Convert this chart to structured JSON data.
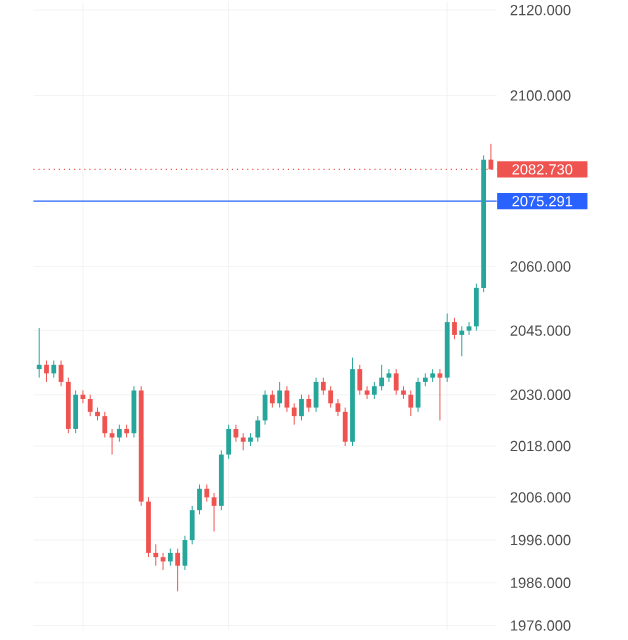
{
  "chart_data": {
    "type": "candlestick",
    "categories": [
      null,
      null,
      null,
      null,
      null,
      null,
      null,
      null,
      null,
      null,
      null,
      null,
      null,
      null,
      null,
      null,
      null,
      null,
      null,
      null,
      null,
      null,
      null,
      null,
      null,
      null,
      null,
      null,
      null,
      null,
      null,
      null,
      null,
      null,
      null,
      null,
      null,
      null,
      null,
      null,
      null,
      null,
      null,
      null,
      null,
      null,
      null,
      null,
      null,
      null,
      null,
      null,
      null,
      null,
      null,
      null,
      null,
      null,
      null,
      null,
      null,
      null,
      null
    ],
    "ohlc": [
      [
        2036,
        2045.6,
        2034,
        2037
      ],
      [
        2037,
        2038,
        2033,
        2035
      ],
      [
        2035,
        2038,
        2034,
        2037
      ],
      [
        2037,
        2038,
        2032,
        2033
      ],
      [
        2033,
        2034,
        2021,
        2022
      ],
      [
        2022,
        2031,
        2021,
        2030
      ],
      [
        2030,
        2031,
        2028,
        2029
      ],
      [
        2029,
        2030,
        2025,
        2026
      ],
      [
        2026,
        2027,
        2024,
        2025
      ],
      [
        2025,
        2026,
        2020,
        2021
      ],
      [
        2021,
        2022,
        2016,
        2020
      ],
      [
        2020,
        2023,
        2019,
        2022
      ],
      [
        2022,
        2023,
        2020,
        2021
      ],
      [
        2021,
        2032,
        2020,
        2031
      ],
      [
        2031,
        2032,
        2004,
        2005
      ],
      [
        2005,
        2006,
        1992,
        1993
      ],
      [
        1993,
        1995,
        1990,
        1992
      ],
      [
        1992,
        1993,
        1989,
        1991
      ],
      [
        1991,
        1994,
        1990,
        1993
      ],
      [
        1993,
        1994,
        1984,
        1990
      ],
      [
        1990,
        1997,
        1989,
        1996
      ],
      [
        1996,
        2004,
        1995,
        2003
      ],
      [
        2003,
        2009,
        2002,
        2008
      ],
      [
        2008,
        2009,
        2005,
        2006
      ],
      [
        2006,
        2007,
        1998,
        2004
      ],
      [
        2004,
        2017,
        2003,
        2016
      ],
      [
        2016,
        2023,
        2015,
        2022
      ],
      [
        2022,
        2023,
        2019,
        2020
      ],
      [
        2020,
        2021,
        2017,
        2019
      ],
      [
        2019,
        2021,
        2018,
        2020
      ],
      [
        2020,
        2025,
        2019,
        2024
      ],
      [
        2024,
        2031,
        2023,
        2030
      ],
      [
        2030,
        2031,
        2027,
        2028
      ],
      [
        2028,
        2033,
        2027,
        2031
      ],
      [
        2031,
        2032,
        2026,
        2027
      ],
      [
        2027,
        2028,
        2023,
        2025
      ],
      [
        2025,
        2030,
        2024,
        2029
      ],
      [
        2029,
        2030,
        2026,
        2027
      ],
      [
        2027,
        2034,
        2026,
        2033
      ],
      [
        2033,
        2034,
        2030,
        2031
      ],
      [
        2031,
        2032,
        2027,
        2028
      ],
      [
        2028,
        2029,
        2025,
        2026
      ],
      [
        2026,
        2027,
        2018,
        2019
      ],
      [
        2019,
        2038.7,
        2018,
        2036
      ],
      [
        2036,
        2037,
        2030,
        2031
      ],
      [
        2031,
        2032,
        2029,
        2030
      ],
      [
        2030,
        2033,
        2029,
        2032
      ],
      [
        2032,
        2037,
        2031,
        2034
      ],
      [
        2034,
        2036,
        2033,
        2035
      ],
      [
        2035,
        2036,
        2030,
        2031
      ],
      [
        2031,
        2032,
        2029,
        2030
      ],
      [
        2030,
        2031,
        2025,
        2027
      ],
      [
        2027,
        2034,
        2026,
        2033
      ],
      [
        2033,
        2035,
        2032,
        2034
      ],
      [
        2034,
        2036,
        2033,
        2035
      ],
      [
        2035,
        2036,
        2024,
        2034
      ],
      [
        2034,
        2049,
        2033,
        2047
      ],
      [
        2047,
        2048,
        2043,
        2044
      ],
      [
        2044,
        2046,
        2039,
        2045
      ],
      [
        2045,
        2047,
        2044,
        2046
      ],
      [
        2046,
        2056,
        2045,
        2055
      ],
      [
        2055,
        2086,
        2054,
        2085
      ],
      [
        2085,
        2088.7,
        2082.7,
        2082.73
      ]
    ],
    "colors": [
      "#26a69a",
      "#ef5350",
      "#26a69a",
      "#ef5350",
      "#ef5350",
      "#26a69a",
      "#ef5350",
      "#ef5350",
      "#ef5350",
      "#ef5350",
      "#ef5350",
      "#26a69a",
      "#ef5350",
      "#26a69a",
      "#ef5350",
      "#ef5350",
      "#ef5350",
      "#ef5350",
      "#26a69a",
      "#ef5350",
      "#26a69a",
      "#26a69a",
      "#26a69a",
      "#ef5350",
      "#ef5350",
      "#26a69a",
      "#26a69a",
      "#ef5350",
      "#ef5350",
      "#26a69a",
      "#26a69a",
      "#26a69a",
      "#ef5350",
      "#26a69a",
      "#ef5350",
      "#ef5350",
      "#26a69a",
      "#ef5350",
      "#26a69a",
      "#ef5350",
      "#ef5350",
      "#ef5350",
      "#ef5350",
      "#26a69a",
      "#ef5350",
      "#ef5350",
      "#26a69a",
      "#26a69a",
      "#26a69a",
      "#ef5350",
      "#ef5350",
      "#ef5350",
      "#26a69a",
      "#26a69a",
      "#26a69a",
      "#ef5350",
      "#26a69a",
      "#ef5350",
      "#26a69a",
      "#26a69a",
      "#26a69a",
      "#26a69a",
      "#ef5350"
    ],
    "ylim": [
      1975,
      2122
    ],
    "yticks": [
      {
        "value": 2120,
        "label": "2120.000"
      },
      {
        "value": 2100,
        "label": "2100.000"
      },
      {
        "value": 2060,
        "label": "2060.000"
      },
      {
        "value": 2045,
        "label": "2045.000"
      },
      {
        "value": 2030,
        "label": "2030.000"
      },
      {
        "value": 2018,
        "label": "2018.000"
      },
      {
        "value": 2006,
        "label": "2006.000"
      },
      {
        "value": 1996,
        "label": "1996.000"
      },
      {
        "value": 1986,
        "label": "1986.000"
      },
      {
        "value": 1976,
        "label": "1976.000"
      }
    ],
    "ref_lines": [
      {
        "axis": "y",
        "value": 2082.73,
        "label": "2082.730",
        "color": "#ef5350",
        "line_style": "dotted"
      },
      {
        "axis": "y",
        "value": 2075.291,
        "label": "2075.291",
        "color": "#2962ff",
        "line_style": "solid"
      }
    ],
    "grid": true,
    "tick_labels": "y"
  }
}
